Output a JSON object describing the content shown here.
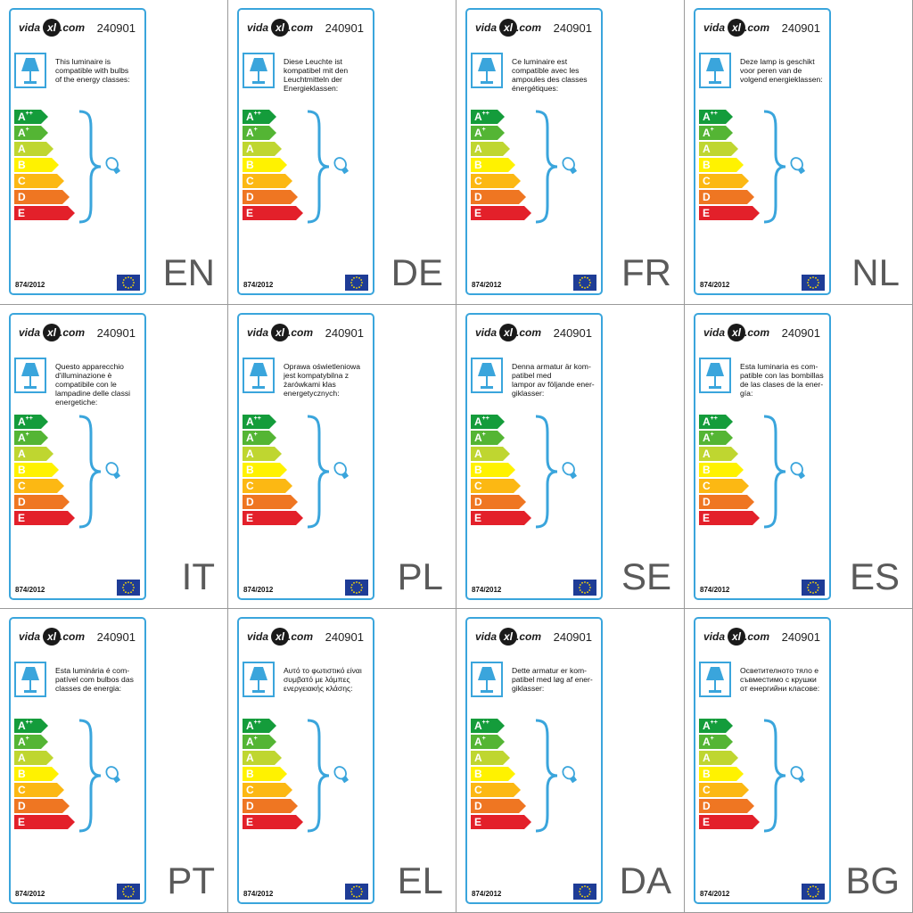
{
  "brand": {
    "prefix": "vida",
    "mark": "xl",
    "suffix": ".com"
  },
  "colors": {
    "frame": "#3aa5dc",
    "classes": {
      "A++": "#149c3b",
      "A+": "#54b534",
      "A": "#bfd630",
      "B": "#fff200",
      "C": "#fcb813",
      "D": "#ef7622",
      "E": "#e3202a"
    }
  },
  "icons": {
    "lamp": "lamp-icon",
    "bulb": "bulb-icon",
    "brace": "curly-brace",
    "flag": "eu-flag-icon"
  },
  "energy_classes": [
    {
      "main": "A",
      "sup": "++"
    },
    {
      "main": "A",
      "sup": "+"
    },
    {
      "main": "A",
      "sup": ""
    },
    {
      "main": "B",
      "sup": ""
    },
    {
      "main": "C",
      "sup": ""
    },
    {
      "main": "D",
      "sup": ""
    },
    {
      "main": "E",
      "sup": ""
    }
  ],
  "labels": [
    {
      "code": "240901",
      "lang": "EN",
      "regulation": "874/2012",
      "text": "This luminaire is\ncompatible with bulbs\nof the energy classes:"
    },
    {
      "code": "240901",
      "lang": "DE",
      "regulation": "874/2012",
      "text": "Diese Leuchte ist\nkompatibel mit den\nLeuchtmitteln der\nEnergieklassen:"
    },
    {
      "code": "240901",
      "lang": "FR",
      "regulation": "874/2012",
      "text": "Ce luminaire est\ncompatible avec les\nampoules des classes\nénergétiques:"
    },
    {
      "code": "240901",
      "lang": "NL",
      "regulation": "874/2012",
      "text": "Deze lamp is geschikt\nvoor peren van de\nvolgend energieklassen:"
    },
    {
      "code": "240901",
      "lang": "IT",
      "regulation": "874/2012",
      "text": "Questo apparecchio\nd'illuminazione è\ncompatibile con le\nlampadine delle classi\nenergetiche:"
    },
    {
      "code": "240901",
      "lang": "PL",
      "regulation": "874/2012",
      "text": "Oprawa oświetleniowa\njest kompatybilna z\nżarówkami klas\nenergetycznych:"
    },
    {
      "code": "240901",
      "lang": "SE",
      "regulation": "874/2012",
      "text": "Denna armatur är kom-\npatibel med\nlampor av följande ener-\ngiklasser:"
    },
    {
      "code": "240901",
      "lang": "ES",
      "regulation": "874/2012",
      "text": "Esta luminaria es com-\npatible con las bombillas\nde las clases de la ener-\ngía:"
    },
    {
      "code": "240901",
      "lang": "PT",
      "regulation": "874/2012",
      "text": "Esta luminária é com-\npatível com bulbos das\nclasses de energia:"
    },
    {
      "code": "240901",
      "lang": "EL",
      "regulation": "874/2012",
      "text": "Αυτό το φωτιστικό είναι\nσυμβατό με λάμπες\nενεργειακής κλάσης:"
    },
    {
      "code": "240901",
      "lang": "DA",
      "regulation": "874/2012",
      "text": "Dette armatur er kom-\npatibel med løg af ener-\ngiklasser:"
    },
    {
      "code": "240901",
      "lang": "BG",
      "regulation": "874/2012",
      "text": "Осветителното тяло е\nсъвместимо с крушки\nот енергийни класове:"
    }
  ]
}
